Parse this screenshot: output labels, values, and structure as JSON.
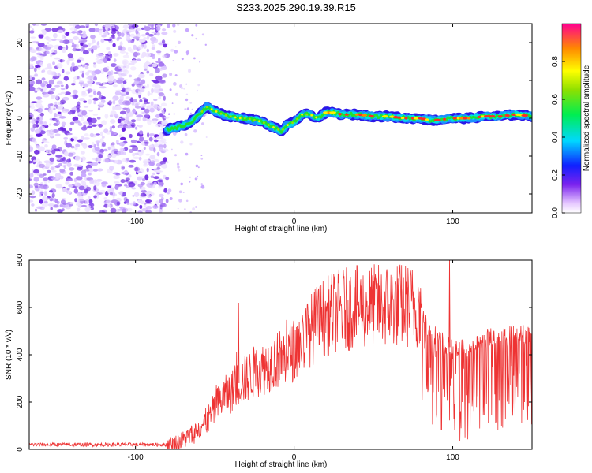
{
  "title": "S233.2025.290.19.39.R15",
  "chart_data": [
    {
      "type": "heatmap",
      "xlabel": "Height of straight line (km)",
      "ylabel": "Frequency (Hz)",
      "xlim": [
        -167,
        150
      ],
      "ylim": [
        -25,
        25
      ],
      "xticks": [
        -100,
        0,
        100
      ],
      "yticks": [
        -20,
        -10,
        0,
        10,
        20
      ],
      "noise_region_x": [
        -167,
        -80
      ],
      "signal_ridge": {
        "x": [
          -80,
          -70,
          -65,
          -60,
          -55,
          -50,
          -45,
          -40,
          -35,
          -30,
          -25,
          -20,
          -15,
          -10,
          -8,
          -5,
          0,
          5,
          10,
          15,
          20,
          25,
          30,
          40,
          50,
          60,
          70,
          80,
          85,
          90,
          100,
          110,
          120,
          130,
          140,
          150
        ],
        "frequency_hz": [
          -3,
          -2,
          -1,
          1,
          3,
          2,
          1,
          0.5,
          0,
          0,
          -0.5,
          -1,
          -2,
          -3,
          -3.5,
          -2,
          -1,
          1,
          1,
          0,
          1.5,
          1.5,
          1,
          1,
          0.5,
          0.5,
          0,
          0,
          -0.5,
          -0.5,
          0,
          0,
          0.5,
          0.5,
          1,
          0.5
        ]
      },
      "colorbar": {
        "label": "Normalized spectral amplitude",
        "range": [
          0.0,
          1.0
        ],
        "ticks": [
          "0.0",
          "0.2",
          "0.4",
          "0.6",
          "0.8"
        ]
      }
    },
    {
      "type": "line",
      "xlabel": "Height of straight line (km)",
      "ylabel": "SNR (10 * v/v)",
      "xlim": [
        -167,
        150
      ],
      "ylim": [
        0,
        800
      ],
      "xticks": [
        -100,
        0,
        100
      ],
      "yticks": [
        0,
        200,
        400,
        600,
        800
      ],
      "series": [
        {
          "name": "SNR",
          "color": "#ee3333",
          "x": [
            -167,
            -150,
            -120,
            -90,
            -80,
            -75,
            -70,
            -65,
            -60,
            -55,
            -50,
            -45,
            -40,
            -35,
            -30,
            -25,
            -20,
            -15,
            -10,
            -5,
            0,
            5,
            10,
            15,
            20,
            25,
            30,
            40,
            50,
            60,
            70,
            80,
            82,
            85,
            90,
            95,
            100,
            110,
            120,
            130,
            140,
            150
          ],
          "values": [
            20,
            20,
            20,
            20,
            20,
            25,
            40,
            60,
            90,
            120,
            170,
            220,
            240,
            280,
            300,
            330,
            340,
            360,
            380,
            400,
            420,
            460,
            500,
            540,
            560,
            580,
            590,
            600,
            605,
            610,
            610,
            600,
            560,
            500,
            480,
            450,
            420,
            430,
            470,
            480,
            490,
            490
          ]
        }
      ],
      "peaks": [
        {
          "x": -35,
          "y": 620
        },
        {
          "x": 98,
          "y": 800
        }
      ]
    }
  ]
}
